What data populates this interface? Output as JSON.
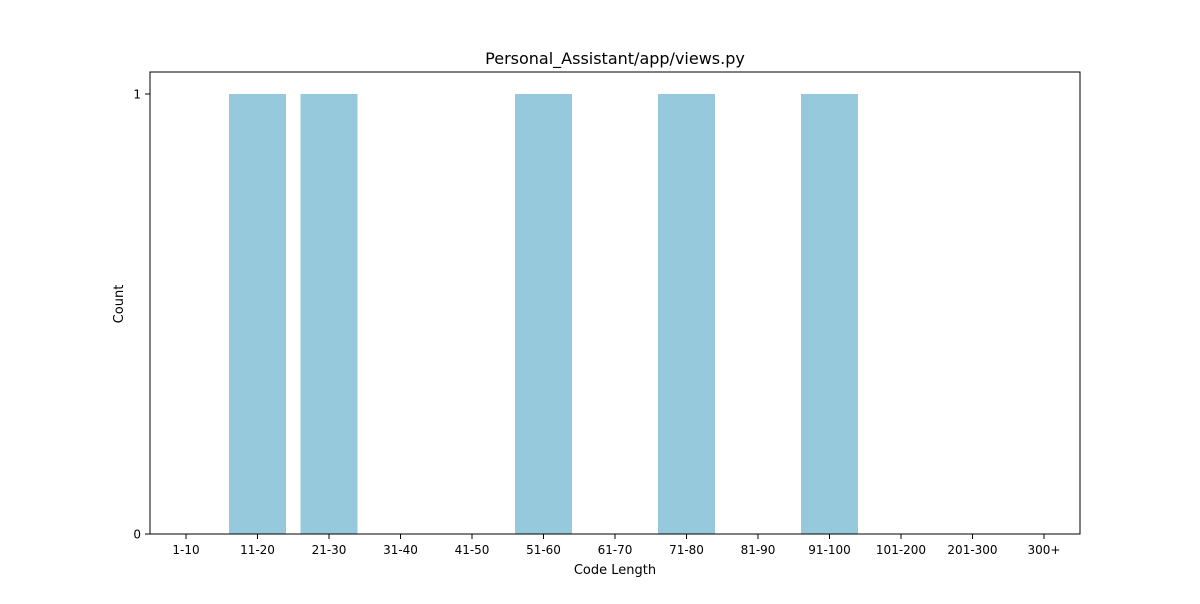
{
  "chart_data": {
    "type": "bar",
    "title": "Personal_Assistant/app/views.py",
    "xlabel": "Code Length",
    "ylabel": "Count",
    "categories": [
      "1-10",
      "11-20",
      "21-30",
      "31-40",
      "41-50",
      "51-60",
      "61-70",
      "71-80",
      "81-90",
      "91-100",
      "101-200",
      "201-300",
      "300+"
    ],
    "values": [
      0,
      1,
      1,
      0,
      0,
      1,
      0,
      1,
      0,
      1,
      0,
      0,
      0
    ],
    "ylim": [
      0,
      1
    ],
    "yticks": [
      "0",
      "1"
    ],
    "grid": false,
    "bar_color": "#96c9dc"
  }
}
